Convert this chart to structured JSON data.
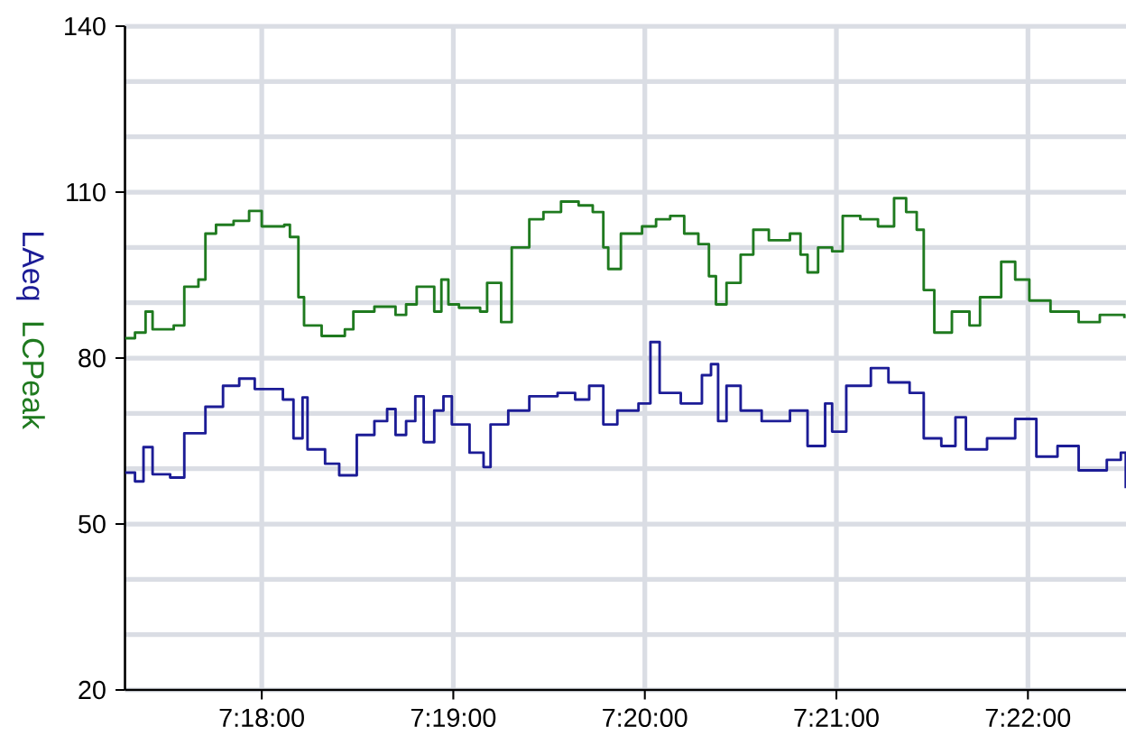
{
  "chart_data": {
    "type": "step",
    "series": [
      {
        "name": "LAeq",
        "color": "#1c1c96",
        "x": [
          7.28811,
          7.28897,
          7.28971,
          7.2905,
          7.29203,
          7.29326,
          7.2951,
          7.29663,
          7.29804,
          7.29939,
          7.30184,
          7.30276,
          7.30355,
          7.30398,
          7.30551,
          7.30674,
          7.30827,
          7.3098,
          7.31091,
          7.31164,
          7.31256,
          7.31336,
          7.31409,
          7.31501,
          7.31581,
          7.31654,
          7.31808,
          7.3193,
          7.31991,
          7.32145,
          7.32328,
          7.32574,
          7.32727,
          7.32849,
          7.32972,
          7.33094,
          7.33278,
          7.33382,
          7.33462,
          7.33646,
          7.3383,
          7.33909,
          7.33971,
          7.34044,
          7.34167,
          7.3435,
          7.34596,
          7.34749,
          7.34902,
          7.34963,
          7.35086,
          7.353,
          7.35453,
          7.35637,
          7.3576,
          7.35913,
          7.36036,
          7.36127,
          7.36311,
          7.36556,
          7.3674,
          7.36924,
          7.37108,
          7.37353,
          7.37475,
          7.37518
        ],
        "values": [
          59.3,
          57.7,
          63.9,
          59.0,
          58.4,
          66.4,
          71.2,
          75.0,
          76.3,
          74.4,
          72.5,
          65.5,
          72.9,
          63.5,
          60.9,
          58.8,
          66.1,
          68.6,
          70.8,
          66.1,
          68.6,
          73.1,
          64.8,
          70.5,
          73.1,
          68.0,
          62.9,
          60.3,
          68.0,
          70.5,
          73.1,
          73.7,
          72.5,
          75.0,
          68.0,
          70.5,
          71.8,
          82.9,
          73.7,
          71.8,
          76.9,
          78.9,
          68.6,
          75.0,
          70.5,
          68.6,
          70.5,
          64.1,
          71.8,
          66.7,
          75.0,
          78.2,
          75.6,
          73.7,
          65.5,
          64.1,
          69.3,
          63.5,
          65.5,
          69.0,
          62.2,
          64.1,
          59.7,
          61.6,
          62.9,
          56.5
        ]
      },
      {
        "name": "LCPeak",
        "color": "#1f7a1f",
        "x": [
          7.28811,
          7.28897,
          7.28989,
          7.2905,
          7.29234,
          7.29326,
          7.29449,
          7.2951,
          7.29602,
          7.29755,
          7.2989,
          7.3,
          7.30196,
          7.30245,
          7.30319,
          7.30368,
          7.30521,
          7.30723,
          7.30797,
          7.3098,
          7.31164,
          7.31256,
          7.31348,
          7.31501,
          7.31563,
          7.31624,
          7.31716,
          7.319,
          7.31961,
          7.32083,
          7.32175,
          7.32328,
          7.32451,
          7.32604,
          7.32757,
          7.3288,
          7.32972,
          7.33015,
          7.33125,
          7.33309,
          7.33431,
          7.33554,
          7.33676,
          7.33799,
          7.33891,
          7.33952,
          7.34044,
          7.34167,
          7.34277,
          7.34412,
          7.34596,
          7.34688,
          7.34749,
          7.34841,
          7.34963,
          7.35055,
          7.35208,
          7.35362,
          7.35502,
          7.35607,
          7.35699,
          7.3576,
          7.35852,
          7.36005,
          7.36158,
          7.3625,
          7.36434,
          7.36556,
          7.36679,
          7.36863,
          7.37108,
          7.37292,
          7.37506
        ],
        "values": [
          83.6,
          84.6,
          88.4,
          85.2,
          85.9,
          92.9,
          94.2,
          102.5,
          104.1,
          104.8,
          106.6,
          103.8,
          104.1,
          101.9,
          91.0,
          85.9,
          84.0,
          85.2,
          88.4,
          89.3,
          87.8,
          89.7,
          92.9,
          88.4,
          94.2,
          89.7,
          89.1,
          88.4,
          93.6,
          86.5,
          100.0,
          105.1,
          106.4,
          108.3,
          107.6,
          106.4,
          100.0,
          96.1,
          102.5,
          103.8,
          105.1,
          105.7,
          102.5,
          100.6,
          94.8,
          89.7,
          93.6,
          98.7,
          103.2,
          101.3,
          102.5,
          98.7,
          95.5,
          100.0,
          99.3,
          105.7,
          105.1,
          103.8,
          108.9,
          106.4,
          103.2,
          92.3,
          84.6,
          88.4,
          85.9,
          91.0,
          97.4,
          94.2,
          90.4,
          88.4,
          86.5,
          87.8,
          87.2
        ]
      }
    ],
    "xlim": [
      7.2881,
      7.3752
    ],
    "xticks": [
      {
        "value": 7.3,
        "label": "7:18:00"
      },
      {
        "value": 7.316667,
        "label": "7:19:00"
      },
      {
        "value": 7.333333,
        "label": "7:20:00"
      },
      {
        "value": 7.35,
        "label": "7:21:00"
      },
      {
        "value": 7.366667,
        "label": "7:22:00"
      }
    ],
    "ylim": [
      20,
      140
    ],
    "yticks": [
      20,
      50,
      80,
      110,
      140
    ],
    "grid": true
  }
}
